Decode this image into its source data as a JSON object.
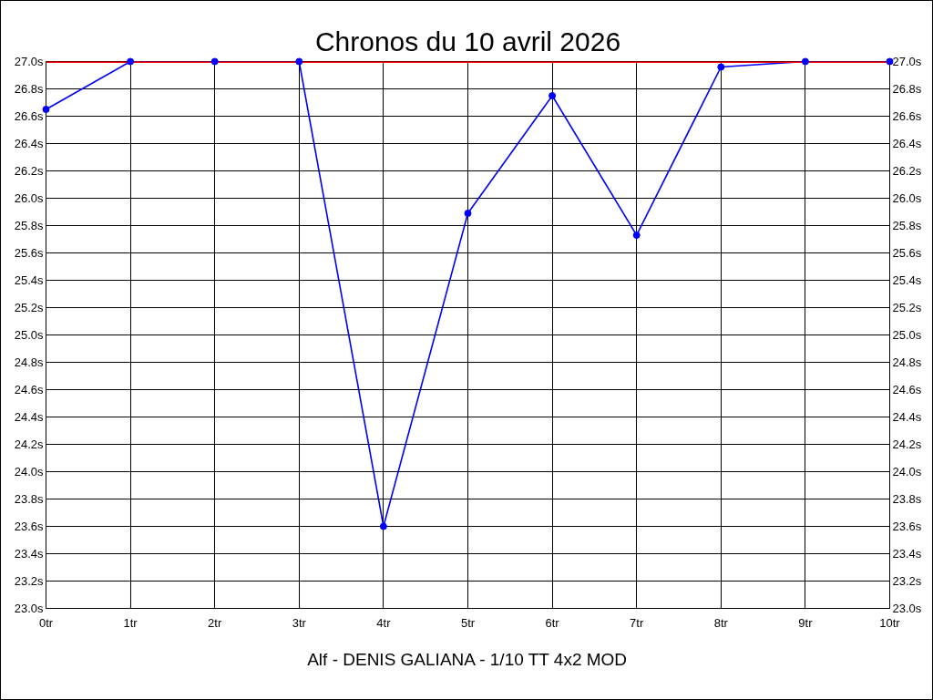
{
  "chart_data": {
    "type": "line",
    "title": "Chronos du 10 avril 2026",
    "x": [
      0,
      1,
      2,
      3,
      4,
      5,
      6,
      7,
      8,
      9,
      10
    ],
    "series": [
      {
        "color": "#0000ff",
        "values": [
          26.65,
          27.0,
          27.0,
          27.0,
          23.6,
          25.89,
          26.75,
          25.73,
          26.96,
          27.0,
          27.0
        ]
      }
    ],
    "xlim": [
      0,
      10
    ],
    "xticks": [
      {
        "value": 0,
        "label": "0tr"
      },
      {
        "value": 1,
        "label": "1tr"
      },
      {
        "value": 2,
        "label": "2tr"
      },
      {
        "value": 3,
        "label": "3tr"
      },
      {
        "value": 4,
        "label": "4tr"
      },
      {
        "value": 5,
        "label": "5tr"
      },
      {
        "value": 6,
        "label": "6tr"
      },
      {
        "value": 7,
        "label": "7tr"
      },
      {
        "value": 8,
        "label": "8tr"
      },
      {
        "value": 9,
        "label": "9tr"
      },
      {
        "value": 10,
        "label": "10tr"
      }
    ],
    "ylim": [
      23.0,
      27.0
    ],
    "yticks": [
      {
        "value": 23.0,
        "label": "23.0s"
      },
      {
        "value": 23.2,
        "label": "23.2s"
      },
      {
        "value": 23.4,
        "label": "23.4s"
      },
      {
        "value": 23.6,
        "label": "23.6s"
      },
      {
        "value": 23.8,
        "label": "23.8s"
      },
      {
        "value": 24.0,
        "label": "24.0s"
      },
      {
        "value": 24.2,
        "label": "24.2s"
      },
      {
        "value": 24.4,
        "label": "24.4s"
      },
      {
        "value": 24.6,
        "label": "24.6s"
      },
      {
        "value": 24.8,
        "label": "24.8s"
      },
      {
        "value": 25.0,
        "label": "25.0s"
      },
      {
        "value": 25.2,
        "label": "25.2s"
      },
      {
        "value": 25.4,
        "label": "25.4s"
      },
      {
        "value": 25.6,
        "label": "25.6s"
      },
      {
        "value": 25.8,
        "label": "25.8s"
      },
      {
        "value": 26.0,
        "label": "26.0s"
      },
      {
        "value": 26.2,
        "label": "26.2s"
      },
      {
        "value": 26.4,
        "label": "26.4s"
      },
      {
        "value": 26.6,
        "label": "26.6s"
      },
      {
        "value": 26.8,
        "label": "26.8s"
      },
      {
        "value": 27.0,
        "label": "27.0s"
      }
    ],
    "y2lim": [
      23.0,
      27.0
    ],
    "y2ticks": [
      {
        "value": 23.0,
        "label": "23.0s"
      },
      {
        "value": 23.2,
        "label": "23.2s"
      },
      {
        "value": 23.4,
        "label": "23.4s"
      },
      {
        "value": 23.6,
        "label": "23.6s"
      },
      {
        "value": 23.8,
        "label": "23.8s"
      },
      {
        "value": 24.0,
        "label": "24.0s"
      },
      {
        "value": 24.2,
        "label": "24.2s"
      },
      {
        "value": 24.4,
        "label": "24.4s"
      },
      {
        "value": 24.6,
        "label": "24.6s"
      },
      {
        "value": 24.8,
        "label": "24.8s"
      },
      {
        "value": 25.0,
        "label": "25.0s"
      },
      {
        "value": 25.2,
        "label": "25.2s"
      },
      {
        "value": 25.4,
        "label": "25.4s"
      },
      {
        "value": 25.6,
        "label": "25.6s"
      },
      {
        "value": 25.8,
        "label": "25.8s"
      },
      {
        "value": 26.0,
        "label": "26.0s"
      },
      {
        "value": 26.2,
        "label": "26.2s"
      },
      {
        "value": 26.4,
        "label": "26.4s"
      },
      {
        "value": 26.6,
        "label": "26.6s"
      },
      {
        "value": 26.8,
        "label": "26.8s"
      },
      {
        "value": 27.0,
        "label": "27.0s"
      }
    ],
    "ref_lines": [
      {
        "axis": "y",
        "value": 27.0,
        "color": "#ff0000"
      }
    ],
    "grid": true,
    "marker": "circle",
    "line_style": "solid",
    "annotations": [
      "Alf - DENIS GALIANA - 1/10 TT 4x2 MOD"
    ]
  }
}
